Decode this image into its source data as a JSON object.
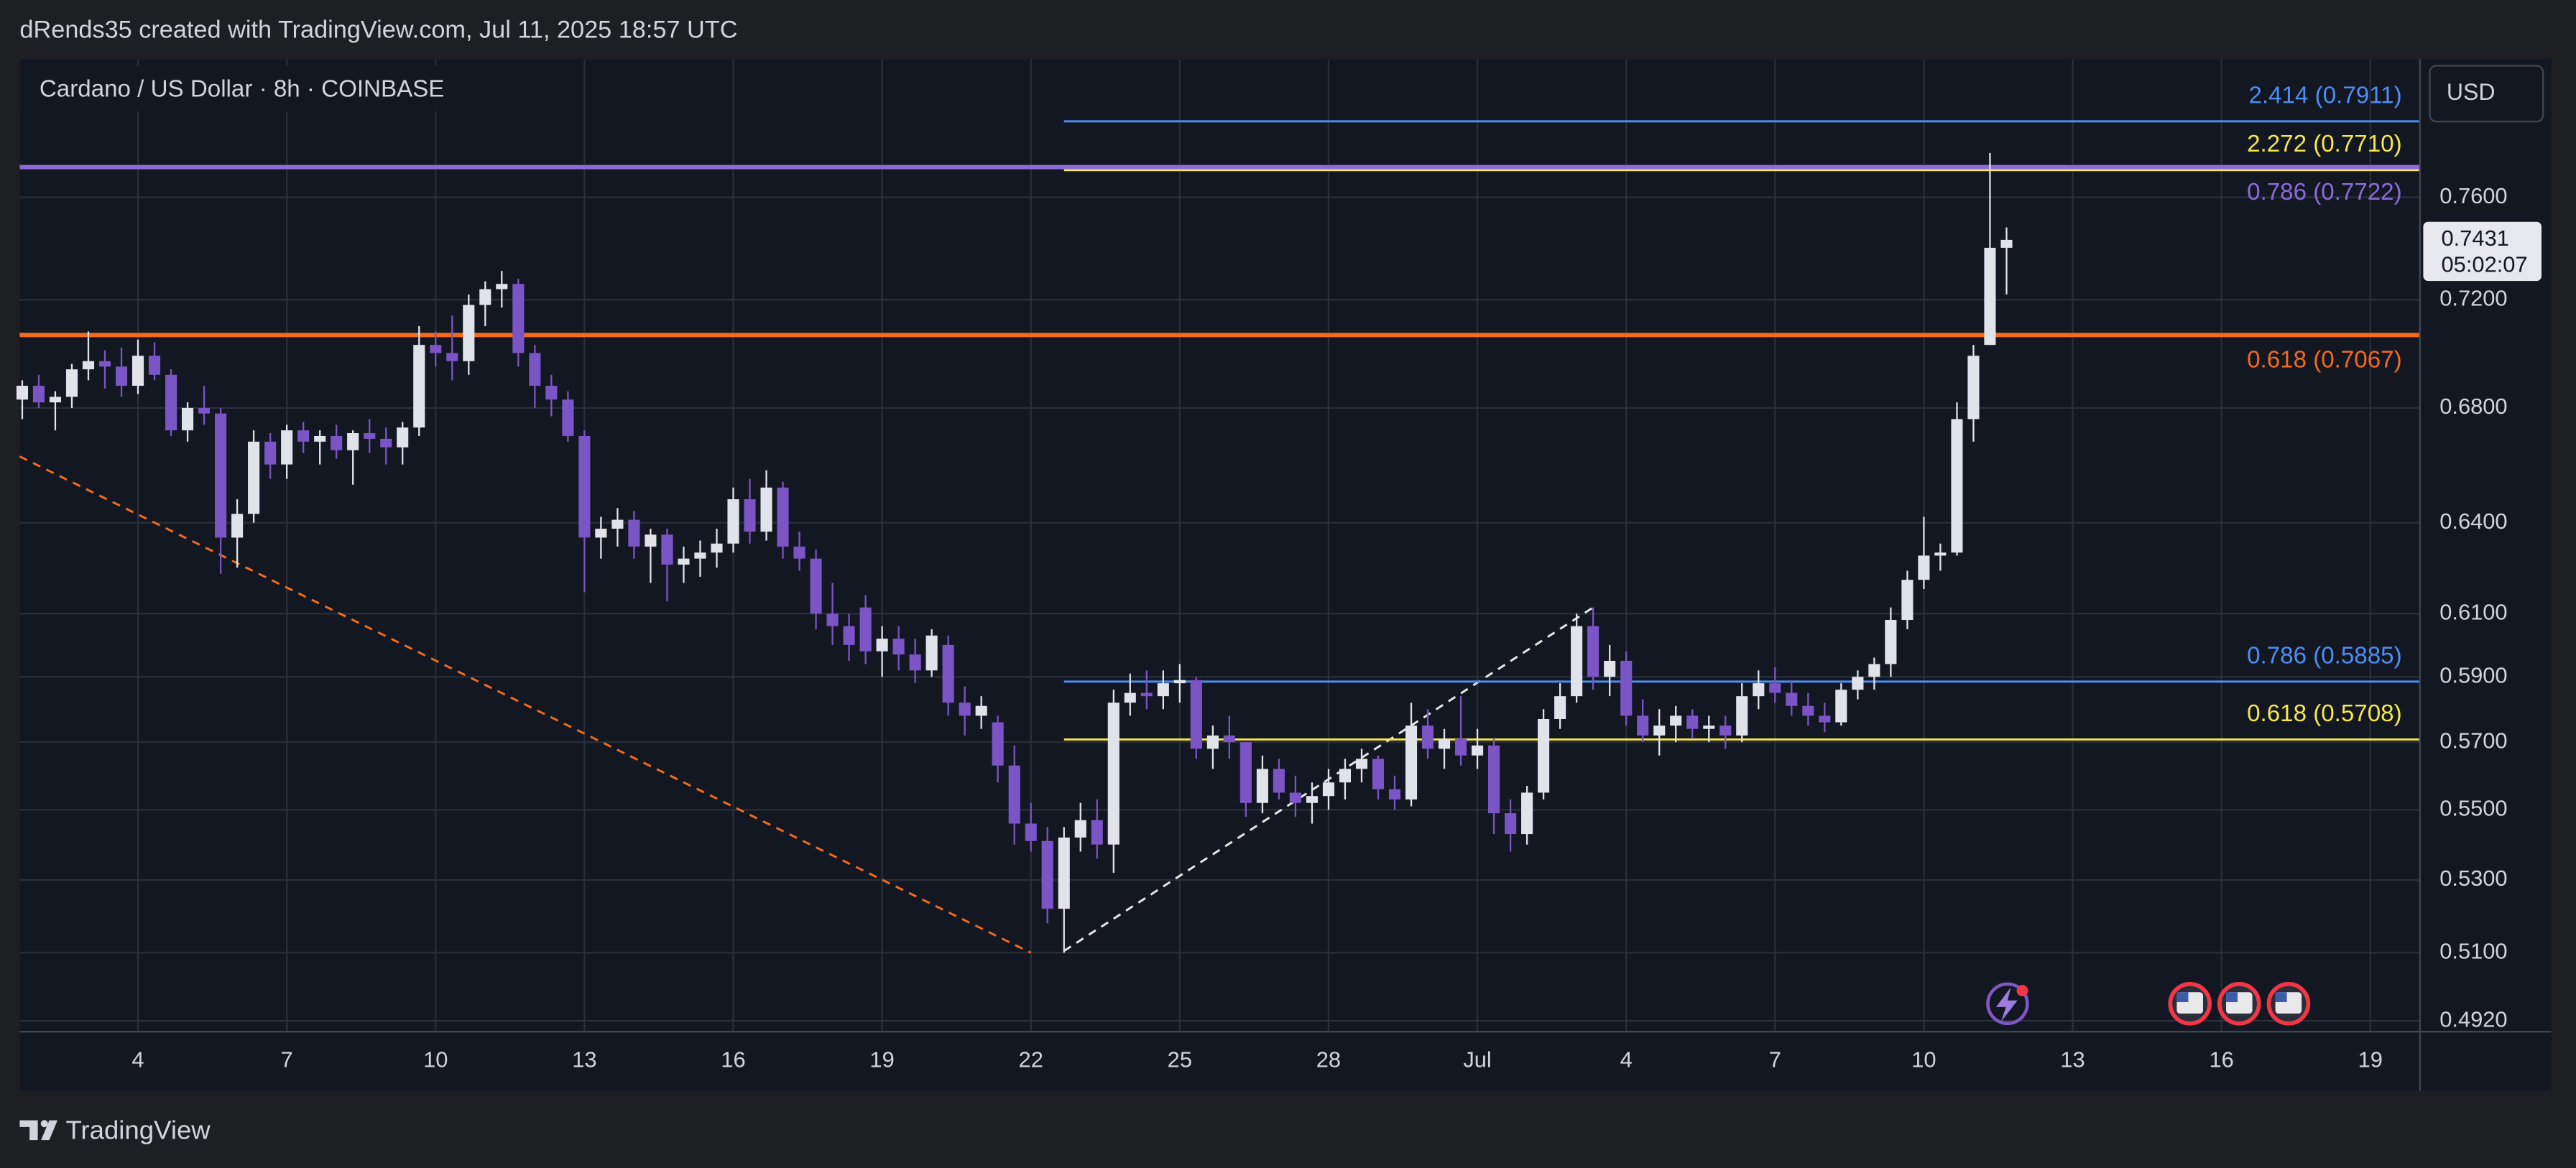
{
  "header": "dRends35 created with TradingView.com, Jul 11, 2025 18:57 UTC",
  "brand": "TradingView",
  "currency_button": "USD",
  "chart_data": {
    "type": "candlestick",
    "title": "Cardano / US Dollar · 8h · COINBASE",
    "log_scale": true,
    "grid": true,
    "up_color": "#e1e3ea",
    "down_color": "#7b54c6",
    "xlim": [
      0.616,
      49.0
    ],
    "xticks": [
      {
        "value": 3,
        "label": "4"
      },
      {
        "value": 6,
        "label": "7"
      },
      {
        "value": 9,
        "label": "10"
      },
      {
        "value": 12,
        "label": "13"
      },
      {
        "value": 15,
        "label": "16"
      },
      {
        "value": 18,
        "label": "19"
      },
      {
        "value": 21,
        "label": "22"
      },
      {
        "value": 24,
        "label": "25"
      },
      {
        "value": 27,
        "label": "28"
      },
      {
        "value": 30,
        "label": "Jul"
      },
      {
        "value": 33,
        "label": "4"
      },
      {
        "value": 36,
        "label": "7"
      },
      {
        "value": 39,
        "label": "10"
      },
      {
        "value": 42,
        "label": "13"
      },
      {
        "value": 45,
        "label": "16"
      },
      {
        "value": 48,
        "label": "19"
      }
    ],
    "ylim": [
      0.4892,
      0.8175
    ],
    "yticks": [
      {
        "value": 0.76,
        "label": "0.7600"
      },
      {
        "value": 0.72,
        "label": "0.7200"
      },
      {
        "value": 0.68,
        "label": "0.6800"
      },
      {
        "value": 0.64,
        "label": "0.6400"
      },
      {
        "value": 0.61,
        "label": "0.6100"
      },
      {
        "value": 0.59,
        "label": "0.5900"
      },
      {
        "value": 0.57,
        "label": "0.5700"
      },
      {
        "value": 0.55,
        "label": "0.5500"
      },
      {
        "value": 0.53,
        "label": "0.5300"
      },
      {
        "value": 0.51,
        "label": "0.5100"
      },
      {
        "value": 0.492,
        "label": "0.4920"
      }
    ],
    "countdown": "05:02:07",
    "candles": {
      "x": [
        0.667,
        1,
        1.333,
        1.667,
        2,
        2.333,
        2.667,
        3,
        3.333,
        3.667,
        4,
        4.333,
        4.667,
        5,
        5.333,
        5.667,
        6,
        6.333,
        6.667,
        7,
        7.333,
        7.667,
        8,
        8.333,
        8.667,
        9,
        9.333,
        9.667,
        10,
        10.333,
        10.667,
        11,
        11.333,
        11.667,
        12,
        12.333,
        12.667,
        13,
        13.333,
        13.667,
        14,
        14.333,
        14.667,
        15,
        15.333,
        15.667,
        16,
        16.333,
        16.667,
        17,
        17.333,
        17.667,
        18,
        18.333,
        18.667,
        19,
        19.333,
        19.667,
        20,
        20.333,
        20.667,
        21,
        21.333,
        21.667,
        22,
        22.333,
        22.667,
        23,
        23.333,
        23.667,
        24,
        24.333,
        24.667,
        25,
        25.333,
        25.667,
        26,
        26.333,
        26.667,
        27,
        27.333,
        27.667,
        28,
        28.333,
        28.667,
        29,
        29.333,
        29.667,
        30,
        30.333,
        30.667,
        31,
        31.333,
        31.667,
        32,
        32.333,
        32.667,
        33,
        33.333,
        33.667,
        34,
        34.333,
        34.667,
        35,
        35.333,
        35.667,
        36,
        36.333,
        36.667,
        37,
        37.333,
        37.667,
        38,
        38.333,
        38.667,
        39,
        39.333,
        39.667,
        40,
        40.333,
        40.667
      ],
      "ohlc": [
        [
          0.683,
          0.69,
          0.676,
          0.688
        ],
        [
          0.688,
          0.692,
          0.68,
          0.682
        ],
        [
          0.682,
          0.686,
          0.672,
          0.684
        ],
        [
          0.684,
          0.696,
          0.68,
          0.694
        ],
        [
          0.694,
          0.708,
          0.69,
          0.697
        ],
        [
          0.697,
          0.701,
          0.687,
          0.695
        ],
        [
          0.695,
          0.702,
          0.684,
          0.688
        ],
        [
          0.688,
          0.705,
          0.685,
          0.699
        ],
        [
          0.699,
          0.704,
          0.69,
          0.692
        ],
        [
          0.692,
          0.694,
          0.67,
          0.672
        ],
        [
          0.672,
          0.682,
          0.668,
          0.68
        ],
        [
          0.68,
          0.688,
          0.674,
          0.678
        ],
        [
          0.678,
          0.68,
          0.623,
          0.635
        ],
        [
          0.635,
          0.648,
          0.625,
          0.643
        ],
        [
          0.643,
          0.672,
          0.64,
          0.668
        ],
        [
          0.668,
          0.671,
          0.655,
          0.66
        ],
        [
          0.66,
          0.674,
          0.655,
          0.672
        ],
        [
          0.672,
          0.675,
          0.664,
          0.668
        ],
        [
          0.668,
          0.672,
          0.66,
          0.67
        ],
        [
          0.67,
          0.674,
          0.662,
          0.665
        ],
        [
          0.665,
          0.672,
          0.653,
          0.671
        ],
        [
          0.671,
          0.676,
          0.664,
          0.669
        ],
        [
          0.669,
          0.673,
          0.66,
          0.666
        ],
        [
          0.666,
          0.675,
          0.66,
          0.673
        ],
        [
          0.673,
          0.71,
          0.67,
          0.703
        ],
        [
          0.703,
          0.708,
          0.695,
          0.7
        ],
        [
          0.7,
          0.714,
          0.69,
          0.697
        ],
        [
          0.697,
          0.722,
          0.692,
          0.718
        ],
        [
          0.718,
          0.727,
          0.71,
          0.724
        ],
        [
          0.724,
          0.731,
          0.717,
          0.726
        ],
        [
          0.726,
          0.728,
          0.695,
          0.7
        ],
        [
          0.7,
          0.703,
          0.68,
          0.688
        ],
        [
          0.688,
          0.692,
          0.677,
          0.683
        ],
        [
          0.683,
          0.686,
          0.668,
          0.67
        ],
        [
          0.67,
          0.672,
          0.617,
          0.635
        ],
        [
          0.635,
          0.642,
          0.628,
          0.638
        ],
        [
          0.638,
          0.645,
          0.632,
          0.641
        ],
        [
          0.641,
          0.644,
          0.628,
          0.632
        ],
        [
          0.632,
          0.638,
          0.62,
          0.636
        ],
        [
          0.636,
          0.638,
          0.614,
          0.626
        ],
        [
          0.626,
          0.632,
          0.62,
          0.628
        ],
        [
          0.628,
          0.634,
          0.622,
          0.63
        ],
        [
          0.63,
          0.638,
          0.625,
          0.633
        ],
        [
          0.633,
          0.652,
          0.63,
          0.648
        ],
        [
          0.648,
          0.655,
          0.633,
          0.637
        ],
        [
          0.637,
          0.658,
          0.634,
          0.652
        ],
        [
          0.652,
          0.654,
          0.628,
          0.632
        ],
        [
          0.632,
          0.637,
          0.624,
          0.628
        ],
        [
          0.628,
          0.631,
          0.605,
          0.61
        ],
        [
          0.61,
          0.62,
          0.6,
          0.606
        ],
        [
          0.606,
          0.61,
          0.595,
          0.6
        ],
        [
          0.612,
          0.616,
          0.594,
          0.598
        ],
        [
          0.598,
          0.606,
          0.59,
          0.602
        ],
        [
          0.602,
          0.606,
          0.592,
          0.597
        ],
        [
          0.597,
          0.602,
          0.588,
          0.592
        ],
        [
          0.592,
          0.605,
          0.59,
          0.603
        ],
        [
          0.6,
          0.603,
          0.578,
          0.582
        ],
        [
          0.582,
          0.587,
          0.572,
          0.578
        ],
        [
          0.578,
          0.584,
          0.574,
          0.581
        ],
        [
          0.576,
          0.578,
          0.558,
          0.563
        ],
        [
          0.563,
          0.569,
          0.54,
          0.546
        ],
        [
          0.546,
          0.552,
          0.538,
          0.541
        ],
        [
          0.541,
          0.545,
          0.518,
          0.522
        ],
        [
          0.522,
          0.545,
          0.51,
          0.542
        ],
        [
          0.542,
          0.552,
          0.538,
          0.547
        ],
        [
          0.547,
          0.553,
          0.536,
          0.54
        ],
        [
          0.54,
          0.586,
          0.532,
          0.582
        ],
        [
          0.582,
          0.591,
          0.578,
          0.585
        ],
        [
          0.585,
          0.592,
          0.58,
          0.584
        ],
        [
          0.584,
          0.592,
          0.58,
          0.588
        ],
        [
          0.588,
          0.594,
          0.582,
          0.589
        ],
        [
          0.589,
          0.59,
          0.565,
          0.568
        ],
        [
          0.568,
          0.575,
          0.562,
          0.572
        ],
        [
          0.572,
          0.578,
          0.565,
          0.57
        ],
        [
          0.57,
          0.57,
          0.548,
          0.552
        ],
        [
          0.552,
          0.566,
          0.549,
          0.562
        ],
        [
          0.562,
          0.565,
          0.553,
          0.555
        ],
        [
          0.555,
          0.56,
          0.548,
          0.552
        ],
        [
          0.552,
          0.558,
          0.546,
          0.554
        ],
        [
          0.554,
          0.562,
          0.55,
          0.558
        ],
        [
          0.558,
          0.565,
          0.553,
          0.562
        ],
        [
          0.562,
          0.568,
          0.558,
          0.565
        ],
        [
          0.565,
          0.566,
          0.553,
          0.556
        ],
        [
          0.556,
          0.56,
          0.55,
          0.553
        ],
        [
          0.553,
          0.582,
          0.551,
          0.575
        ],
        [
          0.575,
          0.58,
          0.565,
          0.568
        ],
        [
          0.568,
          0.574,
          0.562,
          0.571
        ],
        [
          0.571,
          0.584,
          0.563,
          0.566
        ],
        [
          0.566,
          0.574,
          0.562,
          0.569
        ],
        [
          0.569,
          0.571,
          0.543,
          0.549
        ],
        [
          0.549,
          0.553,
          0.538,
          0.543
        ],
        [
          0.543,
          0.557,
          0.54,
          0.555
        ],
        [
          0.555,
          0.58,
          0.553,
          0.577
        ],
        [
          0.577,
          0.588,
          0.574,
          0.584
        ],
        [
          0.584,
          0.61,
          0.582,
          0.606
        ],
        [
          0.606,
          0.612,
          0.586,
          0.59
        ],
        [
          0.59,
          0.6,
          0.584,
          0.595
        ],
        [
          0.595,
          0.598,
          0.575,
          0.578
        ],
        [
          0.578,
          0.583,
          0.57,
          0.572
        ],
        [
          0.572,
          0.58,
          0.566,
          0.575
        ],
        [
          0.575,
          0.581,
          0.57,
          0.578
        ],
        [
          0.578,
          0.58,
          0.571,
          0.574
        ],
        [
          0.574,
          0.578,
          0.57,
          0.575
        ],
        [
          0.575,
          0.578,
          0.568,
          0.572
        ],
        [
          0.572,
          0.588,
          0.57,
          0.584
        ],
        [
          0.584,
          0.592,
          0.58,
          0.588
        ],
        [
          0.588,
          0.593,
          0.582,
          0.585
        ],
        [
          0.585,
          0.589,
          0.578,
          0.581
        ],
        [
          0.581,
          0.585,
          0.575,
          0.578
        ],
        [
          0.578,
          0.582,
          0.573,
          0.576
        ],
        [
          0.576,
          0.588,
          0.575,
          0.586
        ],
        [
          0.586,
          0.592,
          0.583,
          0.59
        ],
        [
          0.59,
          0.596,
          0.586,
          0.594
        ],
        [
          0.594,
          0.612,
          0.59,
          0.608
        ],
        [
          0.608,
          0.624,
          0.605,
          0.621
        ],
        [
          0.621,
          0.642,
          0.618,
          0.629
        ],
        [
          0.629,
          0.633,
          0.624,
          0.63
        ],
        [
          0.63,
          0.682,
          0.629,
          0.676
        ],
        [
          0.676,
          0.703,
          0.668,
          0.699
        ],
        [
          0.703,
          0.778,
          0.703,
          0.74
        ],
        [
          0.74,
          0.748,
          0.722,
          0.7431
        ]
      ]
    },
    "levels": [
      {
        "label": "2.414 (0.7911)",
        "value": 0.7911,
        "color": "#4d8ef5",
        "from": 21.667,
        "label_side": "above"
      },
      {
        "label": "2.272 (0.7710)",
        "value": 0.771,
        "color": "#f5e74c",
        "from": 21.667,
        "label_side": "above"
      },
      {
        "label": "0.786 (0.7722)",
        "value": 0.7722,
        "color": "#8c6bd9",
        "label_side": "below"
      },
      {
        "label": "0.618 (0.7067)",
        "value": 0.7067,
        "color": "#f26b1d",
        "label_side": "below"
      },
      {
        "label": "0.786 (0.5885)",
        "value": 0.5885,
        "color": "#4d8ef5",
        "from": 21.667,
        "label_side": "above"
      },
      {
        "label": "0.618 (0.5708)",
        "value": 0.5708,
        "color": "#f5e74c",
        "from": 21.667,
        "label_side": "above"
      }
    ],
    "trendlines": [
      {
        "color": "#f26b1d",
        "points": [
          [
            0.616,
            0.6628
          ],
          [
            21,
            0.51
          ]
        ]
      },
      {
        "color": "#e6e6e6",
        "points": [
          [
            21.667,
            0.5105
          ],
          [
            32.333,
            0.612
          ]
        ]
      }
    ]
  }
}
